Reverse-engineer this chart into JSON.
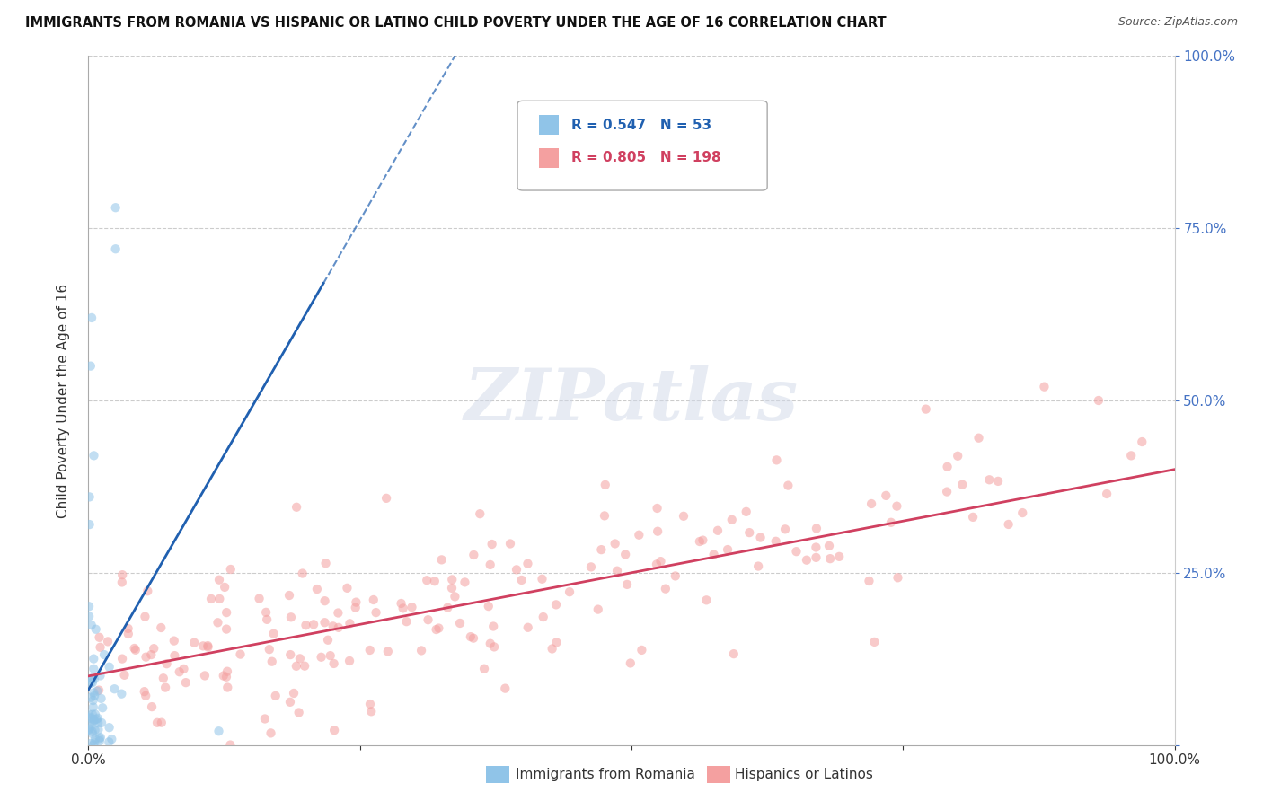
{
  "title": "IMMIGRANTS FROM ROMANIA VS HISPANIC OR LATINO CHILD POVERTY UNDER THE AGE OF 16 CORRELATION CHART",
  "source": "Source: ZipAtlas.com",
  "ylabel": "Child Poverty Under the Age of 16",
  "xlim": [
    0,
    1.0
  ],
  "ylim": [
    0,
    1.0
  ],
  "blue_R": 0.547,
  "blue_N": 53,
  "pink_R": 0.805,
  "pink_N": 198,
  "blue_color": "#90c4e8",
  "pink_color": "#f4a0a0",
  "blue_line_color": "#2060b0",
  "pink_line_color": "#d04060",
  "watermark_text": "ZIPatlas",
  "legend_label_blue": "Immigrants from Romania",
  "legend_label_pink": "Hispanics or Latinos",
  "background_color": "#ffffff",
  "grid_color": "#cccccc",
  "right_axis_color": "#4472c4",
  "blue_seed": 7,
  "pink_seed": 99
}
